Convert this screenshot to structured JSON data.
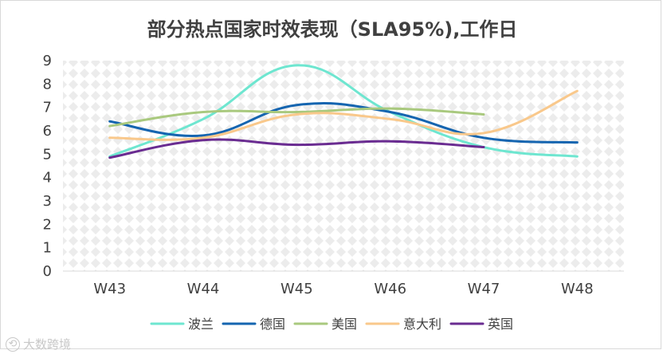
{
  "chart_data": {
    "type": "line",
    "title": "部分热点国家时效表现（SLA95%),工作日",
    "xlabel": "",
    "ylabel": "",
    "categories": [
      "W43",
      "W44",
      "W45",
      "W46",
      "W47",
      "W48"
    ],
    "ylim": [
      0,
      9
    ],
    "yticks": [
      0,
      1,
      2,
      3,
      4,
      5,
      6,
      7,
      8,
      9
    ],
    "grid": false,
    "legend_position": "bottom",
    "series": [
      {
        "name": "波兰",
        "color": "#6EE6D0",
        "values": [
          4.9,
          6.5,
          8.8,
          6.8,
          5.3,
          4.9
        ]
      },
      {
        "name": "德国",
        "color": "#1565B0",
        "values": [
          6.4,
          5.8,
          7.1,
          6.8,
          5.7,
          5.5
        ]
      },
      {
        "name": "美国",
        "color": "#A9C97E",
        "values": [
          6.2,
          6.8,
          6.8,
          6.95,
          6.7,
          null
        ]
      },
      {
        "name": "意大利",
        "color": "#F9C88B",
        "values": [
          5.7,
          5.7,
          6.7,
          6.5,
          5.9,
          7.7
        ]
      },
      {
        "name": "英国",
        "color": "#6A2C91",
        "values": [
          4.85,
          5.6,
          5.4,
          5.55,
          5.3,
          null
        ]
      }
    ]
  },
  "watermark": {
    "icon": "logo-icon",
    "text": "大数跨境"
  }
}
